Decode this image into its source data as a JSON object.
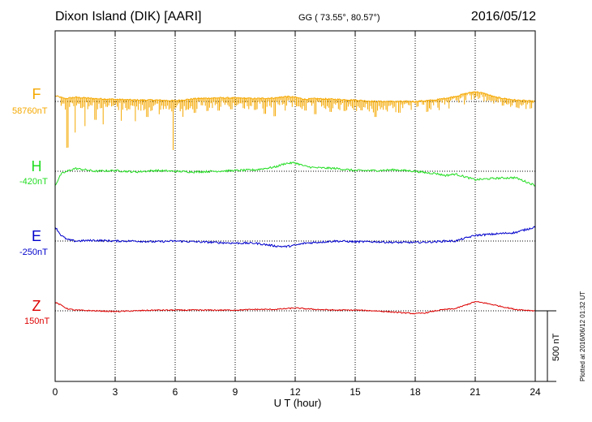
{
  "header": {
    "title": "Dixon Island (DIK)  [AARI]",
    "coords": "GG ( 73.55°,  80.57°)",
    "date": "2016/05/12"
  },
  "components": [
    {
      "name": "F",
      "baseline": "58760nT",
      "color": "#f5a800"
    },
    {
      "name": "H",
      "baseline": "-420nT",
      "color": "#22dd22"
    },
    {
      "name": "E",
      "baseline": "-250nT",
      "color": "#0000cc"
    },
    {
      "name": "Z",
      "baseline": "150nT",
      "color": "#dd0000"
    }
  ],
  "xaxis": {
    "label": "U T (hour)"
  },
  "footer": {
    "plotted": "Plotted at 2016/06/12 01:32 UT"
  },
  "scale": {
    "label": "500 nT"
  },
  "chart_data": {
    "type": "line",
    "xlabel": "U T (hour)",
    "xlim": [
      0,
      24
    ],
    "x_ticks": [
      0,
      3,
      6,
      9,
      12,
      15,
      18,
      21,
      24
    ],
    "grid": true,
    "scale_bar_nT": 500,
    "series": [
      {
        "name": "F",
        "baseline_nT": 58760,
        "x": [
          0,
          0.5,
          1,
          2,
          3,
          4,
          5,
          6,
          7,
          8,
          9,
          10,
          11,
          11.5,
          12,
          12.5,
          13,
          14,
          15,
          16,
          17,
          18,
          19,
          20,
          20.5,
          21,
          21.5,
          22,
          23,
          24
        ],
        "y": [
          40,
          20,
          30,
          20,
          15,
          10,
          10,
          5,
          20,
          25,
          25,
          20,
          25,
          35,
          30,
          15,
          20,
          15,
          10,
          0,
          0,
          0,
          10,
          35,
          55,
          70,
          55,
          30,
          10,
          0
        ],
        "dips": [
          [
            0.6,
            -350
          ],
          [
            1.0,
            -250
          ],
          [
            1.5,
            -200
          ],
          [
            2.0,
            -150
          ],
          [
            2.4,
            -180
          ],
          [
            3.3,
            -150
          ],
          [
            4.0,
            -150
          ],
          [
            4.6,
            -120
          ],
          [
            5.2,
            -100
          ],
          [
            5.9,
            -350
          ],
          [
            6.4,
            -120
          ],
          [
            7.0,
            -100
          ],
          [
            7.6,
            -90
          ],
          [
            8.2,
            -90
          ],
          [
            8.8,
            -80
          ],
          [
            9.4,
            -70
          ],
          [
            10.0,
            -80
          ],
          [
            10.5,
            -110
          ],
          [
            11.0,
            -130
          ],
          [
            11.5,
            -100
          ],
          [
            12.5,
            -80
          ],
          [
            13.0,
            -110
          ],
          [
            13.8,
            -90
          ],
          [
            14.5,
            -80
          ],
          [
            15.3,
            -70
          ],
          [
            16.0,
            -110
          ],
          [
            17.2,
            -80
          ],
          [
            19.0,
            -60
          ],
          [
            20.0,
            -70
          ],
          [
            21.6,
            -60
          ],
          [
            22.2,
            -70
          ],
          [
            23.6,
            -60
          ]
        ]
      },
      {
        "name": "H",
        "baseline_nT": -420,
        "x": [
          0,
          0.3,
          0.6,
          1,
          2,
          3,
          4,
          5,
          6,
          7,
          8,
          9,
          10,
          11,
          11.5,
          12,
          12.5,
          13,
          14,
          15,
          16,
          17,
          18,
          18.5,
          19,
          19.5,
          20,
          21,
          22,
          23,
          24
        ],
        "y": [
          -100,
          -20,
          0,
          20,
          0,
          5,
          -5,
          5,
          0,
          -5,
          0,
          5,
          10,
          30,
          55,
          60,
          35,
          25,
          20,
          5,
          5,
          10,
          0,
          -10,
          -15,
          -30,
          -20,
          -60,
          -50,
          -45,
          -100
        ],
        "noise": 7
      },
      {
        "name": "E",
        "baseline_nT": -250,
        "x": [
          0,
          0.3,
          0.6,
          1,
          2,
          3,
          4,
          5,
          6,
          7,
          8,
          9,
          10,
          11,
          11.5,
          12,
          12.5,
          13,
          14,
          15,
          16,
          17,
          18,
          19,
          19.5,
          20,
          20.5,
          21,
          21.5,
          22,
          23,
          24
        ],
        "y": [
          100,
          40,
          10,
          0,
          5,
          0,
          0,
          -5,
          0,
          -5,
          -10,
          -15,
          -15,
          -35,
          -40,
          -30,
          -15,
          -10,
          0,
          -5,
          -5,
          -10,
          -10,
          -5,
          0,
          0,
          20,
          40,
          45,
          50,
          60,
          100
        ],
        "noise": 7
      },
      {
        "name": "Z",
        "baseline_nT": 150,
        "x": [
          0,
          0.3,
          0.6,
          1,
          2,
          3,
          4,
          5,
          6,
          7,
          8,
          9,
          10,
          11,
          11.5,
          12,
          13,
          14,
          15,
          16,
          17,
          18,
          18.5,
          19,
          19.5,
          20,
          20.5,
          21,
          21.5,
          22,
          22.5,
          23,
          24
        ],
        "y": [
          60,
          40,
          15,
          5,
          0,
          -5,
          0,
          5,
          5,
          5,
          5,
          5,
          10,
          10,
          15,
          20,
          10,
          5,
          5,
          0,
          -10,
          -20,
          -15,
          0,
          10,
          15,
          40,
          65,
          55,
          40,
          25,
          10,
          0
        ],
        "noise": 4
      }
    ]
  }
}
